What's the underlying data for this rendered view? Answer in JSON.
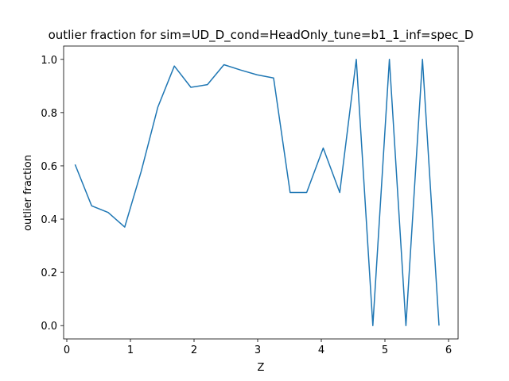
{
  "chart_data": {
    "type": "line",
    "title": "outlier fraction for sim=UD_D_cond=HeadOnly_tune=b1_1_inf=spec_D",
    "xlabel": "Z",
    "ylabel": "outlier fraction",
    "xlim": [
      -0.05,
      6.15
    ],
    "ylim": [
      -0.05,
      1.05
    ],
    "xticks": [
      0,
      1,
      2,
      3,
      4,
      5,
      6
    ],
    "yticks": [
      0.0,
      0.2,
      0.4,
      0.6,
      0.8,
      1.0
    ],
    "xtick_labels": [
      "0",
      "1",
      "2",
      "3",
      "4",
      "5",
      "6"
    ],
    "ytick_labels": [
      "0.0",
      "0.2",
      "0.4",
      "0.6",
      "0.8",
      "1.0"
    ],
    "grid": false,
    "legend": "none",
    "series_color": "#1f77b4",
    "x": [
      0.13,
      0.39,
      0.65,
      0.91,
      1.17,
      1.43,
      1.69,
      1.95,
      2.21,
      2.47,
      2.73,
      2.99,
      3.25,
      3.51,
      3.77,
      4.03,
      4.29,
      4.55,
      4.81,
      5.07,
      5.33,
      5.59,
      5.85
    ],
    "y": [
      0.605,
      0.45,
      0.425,
      0.37,
      0.58,
      0.82,
      0.975,
      0.895,
      0.905,
      0.98,
      0.96,
      0.942,
      0.93,
      0.5,
      0.5,
      0.667,
      0.5,
      1.0,
      0.0,
      1.0,
      0.0,
      1.0,
      0.0
    ]
  }
}
